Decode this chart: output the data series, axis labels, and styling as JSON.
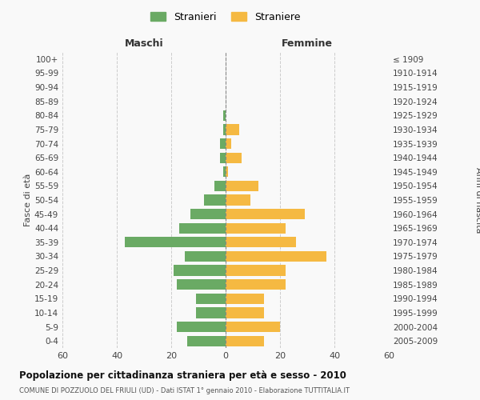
{
  "age_groups": [
    "0-4",
    "5-9",
    "10-14",
    "15-19",
    "20-24",
    "25-29",
    "30-34",
    "35-39",
    "40-44",
    "45-49",
    "50-54",
    "55-59",
    "60-64",
    "65-69",
    "70-74",
    "75-79",
    "80-84",
    "85-89",
    "90-94",
    "95-99",
    "100+"
  ],
  "birth_years": [
    "2005-2009",
    "2000-2004",
    "1995-1999",
    "1990-1994",
    "1985-1989",
    "1980-1984",
    "1975-1979",
    "1970-1974",
    "1965-1969",
    "1960-1964",
    "1955-1959",
    "1950-1954",
    "1945-1949",
    "1940-1944",
    "1935-1939",
    "1930-1934",
    "1925-1929",
    "1920-1924",
    "1915-1919",
    "1910-1914",
    "≤ 1909"
  ],
  "males": [
    14,
    18,
    11,
    11,
    18,
    19,
    15,
    37,
    17,
    13,
    8,
    4,
    1,
    2,
    2,
    1,
    1,
    0,
    0,
    0,
    0
  ],
  "females": [
    14,
    20,
    14,
    14,
    22,
    22,
    37,
    26,
    22,
    29,
    9,
    12,
    1,
    6,
    2,
    5,
    0,
    0,
    0,
    0,
    0
  ],
  "male_color": "#6aaa64",
  "female_color": "#f5b942",
  "title": "Popolazione per cittadinanza straniera per età e sesso - 2010",
  "subtitle": "COMUNE DI POZZUOLO DEL FRIULI (UD) - Dati ISTAT 1° gennaio 2010 - Elaborazione TUTTITALIA.IT",
  "xlabel_left": "Maschi",
  "xlabel_right": "Femmine",
  "ylabel_left": "Fasce di età",
  "ylabel_right": "Anni di nascita",
  "legend_stranieri": "Stranieri",
  "legend_straniere": "Straniere",
  "xlim": 60,
  "background_color": "#f9f9f9",
  "grid_color": "#cccccc"
}
